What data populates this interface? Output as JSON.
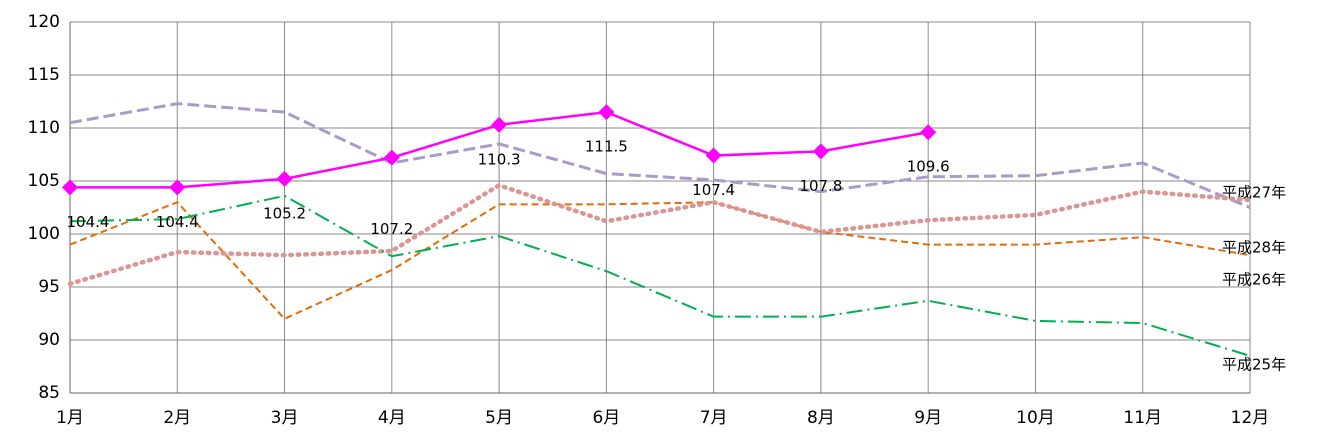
{
  "chart_data": {
    "type": "line",
    "categories": [
      "1月",
      "2月",
      "3月",
      "4月",
      "5月",
      "6月",
      "7月",
      "8月",
      "9月",
      "10月",
      "11月",
      "12月"
    ],
    "ylim": [
      85,
      120
    ],
    "yticks": [
      85,
      90,
      95,
      100,
      105,
      110,
      115,
      120
    ],
    "grid": true,
    "series": [
      {
        "color": "#ff00ff",
        "values": [
          104.4,
          104.4,
          105.2,
          107.2,
          110.3,
          111.5,
          107.4,
          107.8,
          109.6,
          null,
          null,
          null
        ]
      },
      {
        "name": "平成27年",
        "color": "#a99bc9",
        "values": [
          110.5,
          112.3,
          111.5,
          106.7,
          108.5,
          105.7,
          105.1,
          104,
          105.4,
          105.5,
          106.7,
          102.5
        ]
      },
      {
        "name": "平成28年",
        "color": "#e36c0a",
        "values": [
          99,
          103,
          92,
          96.6,
          102.8,
          102.8,
          103,
          100.2,
          99,
          99,
          99.7,
          98
        ]
      },
      {
        "name": "平成26年",
        "color": "#d99694",
        "values": [
          95.3,
          98.3,
          98,
          98.4,
          104.6,
          101.2,
          103,
          100.2,
          101.3,
          101.8,
          104,
          103.2
        ]
      },
      {
        "name": "平成25年",
        "color": "#00b050",
        "values": [
          101.2,
          101.4,
          103.6,
          97.9,
          99.8,
          96.5,
          92.2,
          92.2,
          93.7,
          91.8,
          91.6,
          88.5
        ]
      }
    ]
  }
}
